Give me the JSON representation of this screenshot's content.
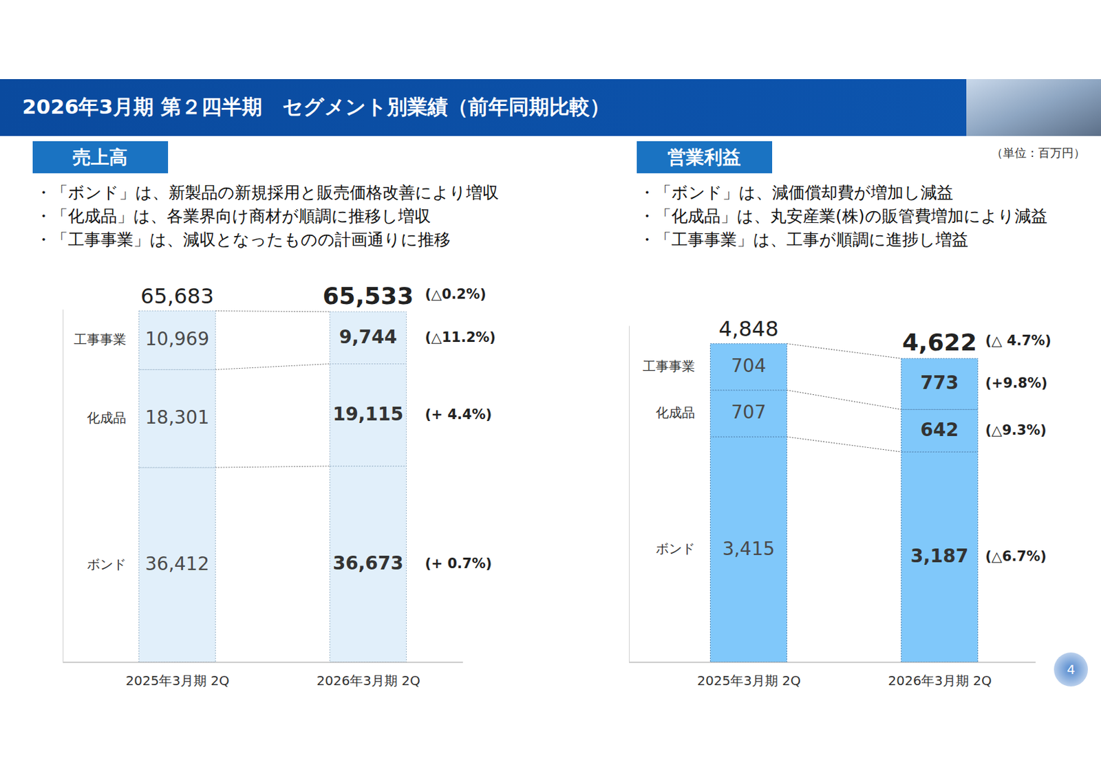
{
  "page": {
    "title": "2026年3月期 第２四半期　セグメント別業績（前年同期比較）",
    "unit": "（単位：百万円）",
    "page_number": "4"
  },
  "chart_data": [
    {
      "type": "bar",
      "stacked": true,
      "data_labels": true,
      "tick_labels": false,
      "title": "売上高",
      "notes": [
        "・「ボンド」は、新製品の新規採用と販売価格改善により増収",
        "・「化成品」は、各業界向け商材が順調に推移し増収",
        "・「工事事業」は、減収となったものの計画通りに推移"
      ],
      "categories": [
        "2025年3月期 2Q",
        "2026年3月期 2Q"
      ],
      "color": "#e1effa",
      "ylim": [
        0,
        66000
      ],
      "yticks": [],
      "series": [
        {
          "name": "ボンド",
          "values": [
            36412,
            36673
          ],
          "value_labels": [
            "36,412",
            "36,673"
          ],
          "change_label": "(+ 0.7%)"
        },
        {
          "name": "化成品",
          "values": [
            18301,
            19115
          ],
          "value_labels": [
            "18,301",
            "19,115"
          ],
          "change_label": "(+ 4.4%)"
        },
        {
          "name": "工事事業",
          "values": [
            10969,
            9744
          ],
          "value_labels": [
            "10,969",
            "9,744"
          ],
          "change_label": "(△11.2%)"
        }
      ],
      "totals": [
        65683,
        65533
      ],
      "total_labels": [
        "65,683",
        "65,533"
      ],
      "total_change_label": "(△0.2%)"
    },
    {
      "type": "bar",
      "stacked": true,
      "data_labels": true,
      "tick_labels": false,
      "title": "営業利益",
      "notes": [
        "・「ボンド」は、減価償却費が増加し減益",
        "・「化成品」は、丸安産業(株)の販管費増加により減益",
        "・「工事事業」は、工事が順調に進捗し増益"
      ],
      "categories": [
        "2025年3月期 2Q",
        "2026年3月期 2Q"
      ],
      "color": "#80c8fa",
      "ylim": [
        0,
        5100
      ],
      "yticks": [],
      "series": [
        {
          "name": "ボンド",
          "values": [
            3415,
            3187
          ],
          "value_labels": [
            "3,415",
            "3,187"
          ],
          "change_label": "(△6.7%)"
        },
        {
          "name": "化成品",
          "values": [
            707,
            642
          ],
          "value_labels": [
            "707",
            "642"
          ],
          "change_label": "(△9.3%)"
        },
        {
          "name": "工事事業",
          "values": [
            704,
            773
          ],
          "value_labels": [
            "704",
            "773"
          ],
          "change_label": "(+9.8%)"
        }
      ],
      "totals": [
        4848,
        4622
      ],
      "total_labels": [
        "4,848",
        "4,622"
      ],
      "total_change_label": "(△ 4.7%)"
    }
  ]
}
